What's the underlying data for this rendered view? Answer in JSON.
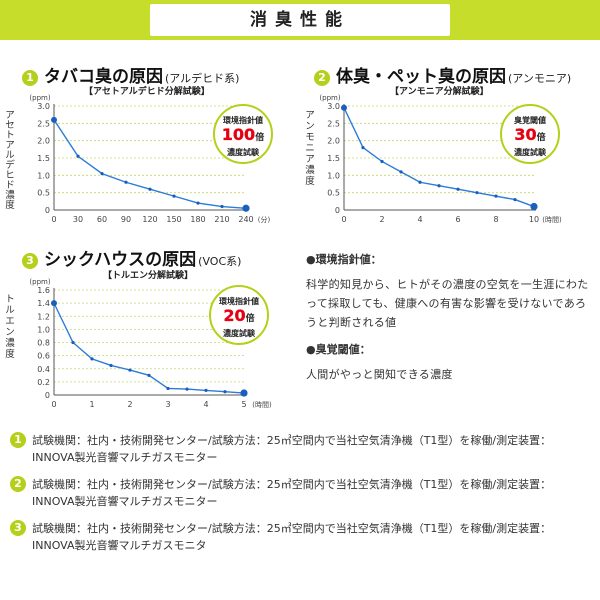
{
  "header": {
    "title": "消臭性能"
  },
  "colors": {
    "accent": "#c7dd2b",
    "line": "#2b7bd8",
    "point": "#1a5fc0",
    "badge_red": "#e60012"
  },
  "panels": [
    {
      "num": "1",
      "title": "タバコ臭の原因",
      "subtitle": "(アルデヒド系)",
      "test": "【アセトアルデヒド分解試験】",
      "badge": {
        "l1": "環境指針値",
        "num": "100",
        "unit": "倍",
        "l3": "濃度試験"
      }
    },
    {
      "num": "2",
      "title": "体臭・ペット臭の原因",
      "subtitle": "(アンモニア)",
      "test": "【アンモニア分解試験】",
      "badge": {
        "l1": "臭覚閾値",
        "num": "30",
        "unit": "倍",
        "l3": "濃度試験"
      }
    },
    {
      "num": "3",
      "title": "シックハウスの原因",
      "subtitle": "(VOC系)",
      "test": "【トルエン分解試験】",
      "badge": {
        "l1": "環境指針値",
        "num": "20",
        "unit": "倍",
        "l3": "濃度試験"
      }
    }
  ],
  "definitions": {
    "env_head": "●環境指針値：",
    "env_text": "科学的知見から、ヒトがその濃度の空気を一生涯にわたって採取しても、健康への有害な影響を受けないであろうと判断される値",
    "smell_head": "●臭覚閾値：",
    "smell_text": "人間がやっと関知できる濃度"
  },
  "notes": [
    {
      "num": "1",
      "text": "試験機関：社内・技術開発センター/試験方法：25㎥空間内で当社空気清浄機（T1型）を稼働/測定装置：INNOVA製光音響マルチガスモニター"
    },
    {
      "num": "2",
      "text": "試験機関：社内・技術開発センター/試験方法：25㎥空間内で当社空気清浄機（T1型）を稼働/測定装置：INNOVA製光音響マルチガスモニター"
    },
    {
      "num": "3",
      "text": "試験機関：社内・技術開発センター/試験方法：25㎥空間内で当社空気清浄機（T1型）を稼働/測定装置：INNOVA製光音響マルチガスモニタ"
    }
  ],
  "chart_data": [
    {
      "type": "line",
      "title": "",
      "ylabel": "アセトアルデヒド濃度",
      "yunit": "(ppm)",
      "xunit": "(分)",
      "ylim": [
        0,
        3.0
      ],
      "yticks": [
        "0",
        "0.5",
        "1.0",
        "1.5",
        "2.0",
        "2.5",
        "3.0"
      ],
      "xlim": [
        0,
        240
      ],
      "xticks": [
        "0",
        "30",
        "60",
        "90",
        "120",
        "150",
        "180",
        "210",
        "240"
      ],
      "grid": "horizontal-dotted",
      "x": [
        0,
        30,
        60,
        90,
        120,
        150,
        180,
        210,
        240
      ],
      "y": [
        2.6,
        1.55,
        1.05,
        0.8,
        0.6,
        0.4,
        0.2,
        0.1,
        0.05
      ]
    },
    {
      "type": "line",
      "title": "",
      "ylabel": "アンモニア濃度",
      "yunit": "(ppm)",
      "xunit": "(時間)",
      "ylim": [
        0,
        3.0
      ],
      "yticks": [
        "0",
        "0.5",
        "1.0",
        "1.5",
        "2.0",
        "2.5",
        "3.0"
      ],
      "xlim": [
        0,
        10
      ],
      "xticks": [
        "0",
        "2",
        "4",
        "6",
        "8",
        "10"
      ],
      "grid": "horizontal-dotted",
      "x": [
        0,
        1,
        2,
        3,
        4,
        5,
        6,
        7,
        8,
        9,
        10
      ],
      "y": [
        2.95,
        1.8,
        1.4,
        1.1,
        0.8,
        0.7,
        0.6,
        0.5,
        0.4,
        0.3,
        0.1
      ]
    },
    {
      "type": "line",
      "title": "",
      "ylabel": "トルエン濃度",
      "yunit": "(ppm)",
      "xunit": "(時間)",
      "ylim": [
        0,
        1.6
      ],
      "yticks": [
        "0",
        "0.2",
        "0.4",
        "0.6",
        "0.8",
        "1.0",
        "1.2",
        "1.4",
        "1.6"
      ],
      "xlim": [
        0,
        5
      ],
      "xticks": [
        "0",
        "1",
        "2",
        "3",
        "4",
        "5"
      ],
      "grid": "horizontal-dotted",
      "x": [
        0,
        0.5,
        1,
        1.5,
        2,
        2.5,
        3,
        3.5,
        4,
        4.5,
        5
      ],
      "y": [
        1.4,
        0.8,
        0.55,
        0.45,
        0.38,
        0.3,
        0.1,
        0.09,
        0.07,
        0.05,
        0.03
      ]
    }
  ]
}
